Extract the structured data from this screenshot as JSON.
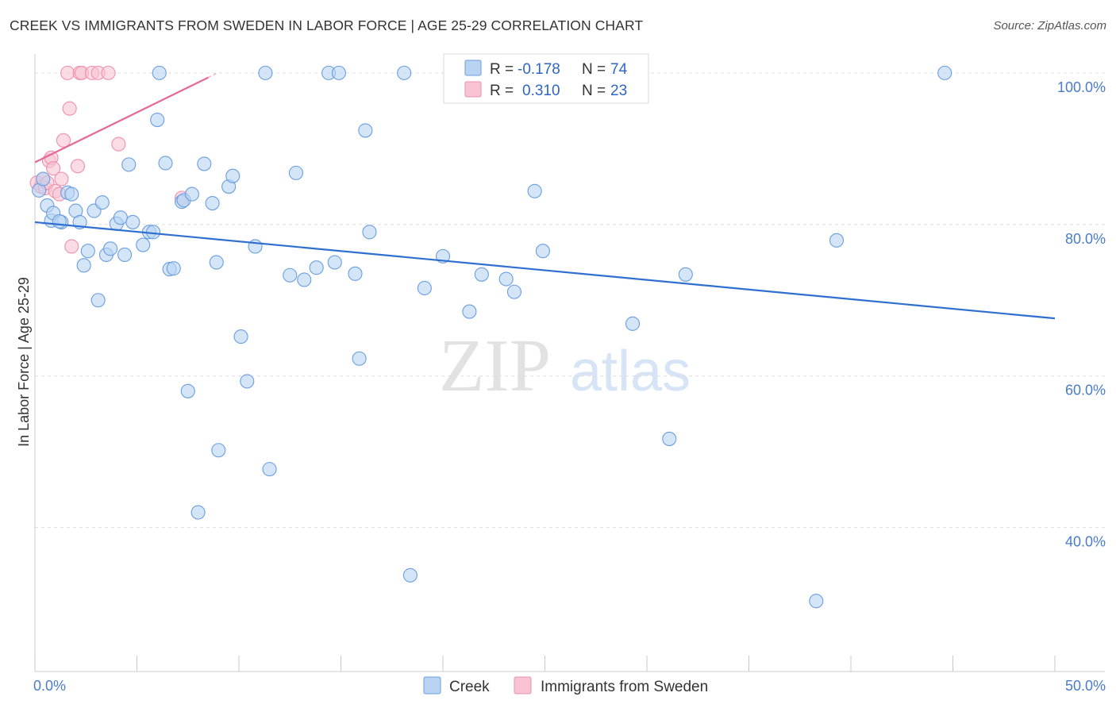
{
  "title": "CREEK VS IMMIGRANTS FROM SWEDEN IN LABOR FORCE | AGE 25-29 CORRELATION CHART",
  "source": "Source: ZipAtlas.com",
  "watermark": {
    "zip": "ZIP",
    "atlas": "atlas"
  },
  "colors": {
    "creek_fill": "#b9d3f3",
    "creek_stroke": "#6a9ee0",
    "creek_line": "#2e6fd0",
    "sweden_fill": "#f8c4d4",
    "sweden_stroke": "#ee8fae",
    "sweden_line": "#e4699a",
    "grid": "#dddddd",
    "axis_label": "#4a7cc9"
  },
  "legend": {
    "rows": [
      {
        "r_label": "R =",
        "r_value": "-0.178",
        "n_label": "N =",
        "n_value": "74"
      },
      {
        "r_label": "R =",
        "r_value": "0.310",
        "n_label": "N =",
        "n_value": "23"
      }
    ]
  },
  "chart_data": {
    "type": "scatter",
    "title": "CREEK VS IMMIGRANTS FROM SWEDEN IN LABOR FORCE | AGE 25-29 CORRELATION CHART",
    "xlabel": "",
    "ylabel": "In Labor Force | Age 25-29",
    "xlim": [
      0,
      50
    ],
    "ylim": [
      21,
      102.5
    ],
    "x_tick_labels": [
      "0.0%",
      "50.0%"
    ],
    "y_ticks": [
      {
        "value": 100,
        "label": "100.0%"
      },
      {
        "value": 80,
        "label": "80.0%"
      },
      {
        "value": 60,
        "label": "60.0%"
      },
      {
        "value": 40,
        "label": "40.0%"
      }
    ],
    "series": [
      {
        "name": "Creek",
        "points": [
          [
            0.2,
            84.5
          ],
          [
            0.6,
            82.5
          ],
          [
            0.8,
            80.5
          ],
          [
            0.9,
            81.5
          ],
          [
            1.3,
            80.3
          ],
          [
            1.6,
            84.2
          ],
          [
            1.8,
            84.0
          ],
          [
            2.0,
            81.8
          ],
          [
            2.2,
            80.3
          ],
          [
            2.4,
            74.6
          ],
          [
            2.6,
            76.5
          ],
          [
            2.9,
            81.8
          ],
          [
            3.1,
            70.0
          ],
          [
            3.3,
            82.9
          ],
          [
            3.5,
            76.0
          ],
          [
            3.7,
            76.8
          ],
          [
            4.0,
            80.1
          ],
          [
            4.2,
            80.9
          ],
          [
            4.4,
            76.0
          ],
          [
            4.6,
            87.9
          ],
          [
            4.8,
            80.3
          ],
          [
            5.3,
            77.3
          ],
          [
            5.6,
            79.0
          ],
          [
            5.8,
            79.0
          ],
          [
            6.0,
            93.8
          ],
          [
            6.1,
            100.0
          ],
          [
            6.4,
            88.1
          ],
          [
            6.6,
            74.1
          ],
          [
            6.8,
            74.2
          ],
          [
            7.2,
            83.0
          ],
          [
            7.3,
            83.2
          ],
          [
            7.5,
            58.0
          ],
          [
            7.7,
            84.0
          ],
          [
            8.0,
            42.0
          ],
          [
            8.3,
            88.0
          ],
          [
            8.7,
            82.8
          ],
          [
            8.9,
            75.0
          ],
          [
            9.0,
            50.2
          ],
          [
            9.5,
            85.0
          ],
          [
            9.7,
            86.4
          ],
          [
            10.1,
            65.2
          ],
          [
            10.4,
            59.3
          ],
          [
            10.8,
            77.1
          ],
          [
            11.3,
            100.0
          ],
          [
            11.5,
            47.7
          ],
          [
            12.5,
            73.3
          ],
          [
            12.8,
            86.8
          ],
          [
            13.2,
            72.7
          ],
          [
            13.8,
            74.3
          ],
          [
            14.4,
            100.0
          ],
          [
            14.7,
            75.0
          ],
          [
            14.9,
            100.0
          ],
          [
            15.7,
            73.5
          ],
          [
            15.9,
            62.3
          ],
          [
            16.2,
            92.4
          ],
          [
            16.4,
            79.0
          ],
          [
            18.1,
            100.0
          ],
          [
            18.4,
            33.7
          ],
          [
            19.1,
            71.6
          ],
          [
            20.0,
            75.8
          ],
          [
            21.3,
            68.5
          ],
          [
            21.9,
            73.4
          ],
          [
            23.1,
            72.8
          ],
          [
            23.5,
            71.1
          ],
          [
            24.5,
            84.4
          ],
          [
            24.9,
            76.5
          ],
          [
            29.3,
            66.9
          ],
          [
            31.1,
            51.7
          ],
          [
            31.9,
            73.4
          ],
          [
            38.3,
            30.3
          ],
          [
            39.3,
            77.9
          ],
          [
            44.6,
            100.0
          ],
          [
            0.4,
            86.0
          ],
          [
            1.2,
            80.4
          ]
        ],
        "trend": {
          "x": [
            0,
            50
          ],
          "y": [
            80.3,
            67.6
          ]
        }
      },
      {
        "name": "Immigrants from Sweden",
        "points": [
          [
            0.1,
            85.5
          ],
          [
            0.3,
            85.0
          ],
          [
            0.4,
            86.0
          ],
          [
            0.5,
            84.8
          ],
          [
            0.6,
            85.5
          ],
          [
            0.7,
            88.4
          ],
          [
            0.8,
            88.8
          ],
          [
            0.9,
            87.4
          ],
          [
            1.0,
            84.4
          ],
          [
            1.2,
            84.0
          ],
          [
            1.3,
            86.0
          ],
          [
            1.4,
            91.1
          ],
          [
            1.6,
            100.0
          ],
          [
            1.7,
            95.3
          ],
          [
            1.8,
            77.1
          ],
          [
            2.1,
            87.7
          ],
          [
            2.2,
            100.0
          ],
          [
            2.3,
            100.0
          ],
          [
            2.8,
            100.0
          ],
          [
            3.1,
            100.0
          ],
          [
            3.6,
            100.0
          ],
          [
            4.1,
            90.6
          ],
          [
            7.2,
            83.5
          ]
        ],
        "trend": {
          "x": [
            0,
            8.5
          ],
          "y": [
            88.2,
            99.4
          ]
        }
      }
    ],
    "legend_position": "top-center",
    "grid": true
  },
  "bottom_legend": {
    "creek": "Creek",
    "sweden": "Immigrants from Sweden"
  }
}
